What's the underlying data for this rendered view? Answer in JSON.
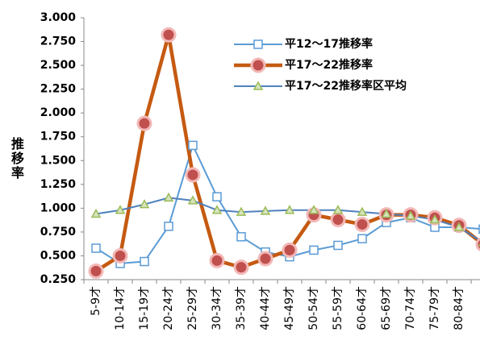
{
  "chart_data": {
    "type": "line",
    "y_label": "推移率",
    "categories": [
      "5-9才",
      "10-14才",
      "15-19才",
      "20-24才",
      "25-29才",
      "30-34才",
      "35-39才",
      "40-44才",
      "45-49才",
      "50-54才",
      "55-59才",
      "60-64才",
      "65-69才",
      "70-74才",
      "75-79才",
      "80-84才",
      null
    ],
    "series": [
      {
        "name": "平12～17推移率",
        "color": "#5b9bd5",
        "marker": "square",
        "values": [
          0.58,
          0.42,
          0.44,
          0.81,
          1.66,
          1.12,
          0.7,
          0.54,
          0.49,
          0.56,
          0.61,
          0.68,
          0.85,
          0.9,
          0.8,
          0.8,
          0.78
        ]
      },
      {
        "name": "平17～22推移率",
        "color": "#c55a11",
        "marker": "circle",
        "values": [
          0.34,
          0.5,
          1.89,
          2.82,
          1.35,
          0.45,
          0.38,
          0.47,
          0.56,
          0.93,
          0.88,
          0.83,
          0.93,
          0.93,
          0.9,
          0.82,
          0.62
        ]
      },
      {
        "name": "平17～22推移率区平均",
        "color": "#4f81bd",
        "marker": "triangle",
        "values": [
          0.94,
          0.98,
          1.04,
          1.11,
          1.08,
          0.98,
          0.96,
          0.97,
          0.98,
          0.98,
          0.98,
          0.96,
          0.94,
          0.92,
          0.88,
          0.8,
          0.64
        ]
      }
    ],
    "ylim": [
      0.25,
      3
    ],
    "yticks": [
      {
        "value": 0.25,
        "label": "0.250"
      },
      {
        "value": 0.5,
        "label": "0.500"
      },
      {
        "value": 0.75,
        "label": "0.750"
      },
      {
        "value": 1,
        "label": "1.000"
      },
      {
        "value": 1.25,
        "label": "1.250"
      },
      {
        "value": 1.5,
        "label": "1.500"
      },
      {
        "value": 1.75,
        "label": "1.750"
      },
      {
        "value": 2,
        "label": "2.000"
      },
      {
        "value": 2.25,
        "label": "2.250"
      },
      {
        "value": 2.5,
        "label": "2.500"
      },
      {
        "value": 2.75,
        "label": "2.750"
      },
      {
        "value": 3,
        "label": "3.000"
      }
    ],
    "grid": false
  }
}
